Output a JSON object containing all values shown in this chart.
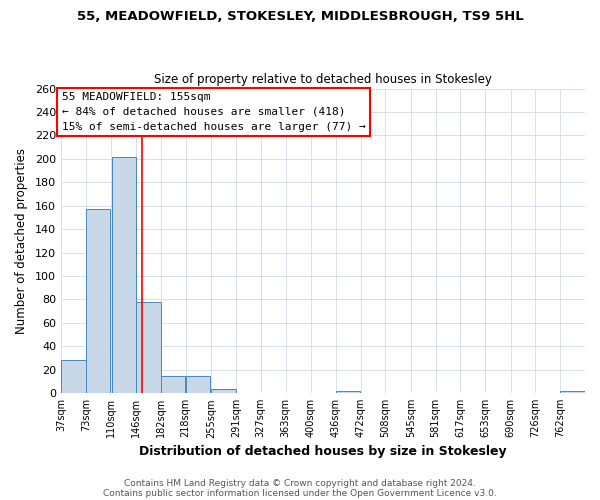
{
  "title1": "55, MEADOWFIELD, STOKESLEY, MIDDLESBROUGH, TS9 5HL",
  "title2": "Size of property relative to detached houses in Stokesley",
  "xlabel": "Distribution of detached houses by size in Stokesley",
  "ylabel": "Number of detached properties",
  "bar_labels": [
    "37sqm",
    "73sqm",
    "110sqm",
    "146sqm",
    "182sqm",
    "218sqm",
    "255sqm",
    "291sqm",
    "327sqm",
    "363sqm",
    "400sqm",
    "436sqm",
    "472sqm",
    "508sqm",
    "545sqm",
    "581sqm",
    "617sqm",
    "653sqm",
    "690sqm",
    "726sqm",
    "762sqm"
  ],
  "bar_values": [
    28,
    157,
    202,
    78,
    15,
    15,
    4,
    0,
    0,
    0,
    0,
    2,
    0,
    0,
    0,
    0,
    0,
    0,
    0,
    0,
    2
  ],
  "bar_color": "#c8d8e8",
  "bar_edgecolor": "#4488bb",
  "property_value": 155,
  "bin_edges": [
    37,
    73,
    110,
    146,
    182,
    218,
    255,
    291,
    327,
    363,
    400,
    436,
    472,
    508,
    545,
    581,
    617,
    653,
    690,
    726,
    762
  ],
  "bin_width": 36,
  "red_line_x": 155,
  "annotation_title": "55 MEADOWFIELD: 155sqm",
  "annotation_line1": "← 84% of detached houses are smaller (418)",
  "annotation_line2": "15% of semi-detached houses are larger (77) →",
  "ylim": [
    0,
    260
  ],
  "yticks": [
    0,
    20,
    40,
    60,
    80,
    100,
    120,
    140,
    160,
    180,
    200,
    220,
    240,
    260
  ],
  "footnote1": "Contains HM Land Registry data © Crown copyright and database right 2024.",
  "footnote2": "Contains public sector information licensed under the Open Government Licence v3.0.",
  "bg_color": "#ffffff",
  "plot_bg_color": "#ffffff",
  "grid_color": "#d0dce8"
}
